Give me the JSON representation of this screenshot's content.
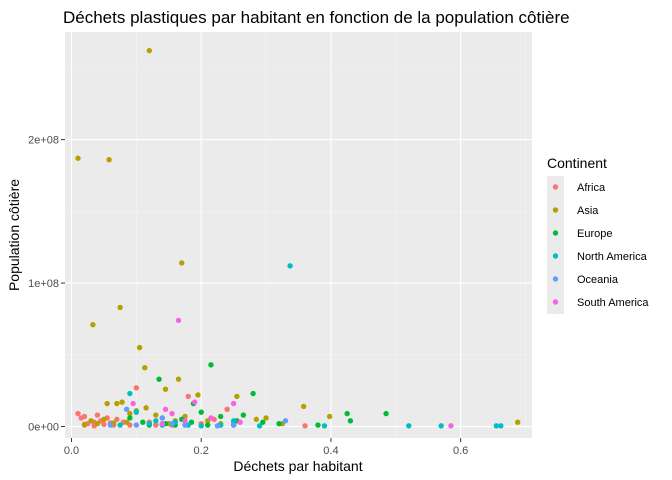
{
  "chart_data": {
    "type": "scatter",
    "title": "Déchets plastiques par habitant en fonction de la population côtière",
    "xlabel": "Déchets par habitant",
    "ylabel": "Population côtière",
    "xlim": [
      -0.01,
      0.71
    ],
    "ylim": [
      -8000000,
      275000000
    ],
    "x_ticks": [
      0.0,
      0.2,
      0.4,
      0.6
    ],
    "x_tick_labels": [
      "0.0",
      "0.2",
      "0.4",
      "0.6"
    ],
    "y_ticks": [
      0,
      100000000,
      200000000
    ],
    "y_tick_labels": [
      "0e+00",
      "1e+08",
      "2e+08"
    ],
    "grid": true,
    "legend": {
      "title": "Continent",
      "position": "right"
    },
    "series": [
      {
        "name": "Africa",
        "color": "#F8766D",
        "points": [
          [
            0.01,
            9000000
          ],
          [
            0.015,
            6000000
          ],
          [
            0.02,
            7000000
          ],
          [
            0.025,
            2000000
          ],
          [
            0.035,
            3000000
          ],
          [
            0.04,
            8000000
          ],
          [
            0.045,
            4000000
          ],
          [
            0.05,
            1500000
          ],
          [
            0.055,
            6000000
          ],
          [
            0.06,
            2500000
          ],
          [
            0.065,
            1000000
          ],
          [
            0.07,
            5000000
          ],
          [
            0.08,
            3000000
          ],
          [
            0.09,
            1000000
          ],
          [
            0.1,
            27000000
          ],
          [
            0.12,
            3000000
          ],
          [
            0.13,
            1000000
          ],
          [
            0.155,
            1000000
          ],
          [
            0.18,
            21000000
          ],
          [
            0.2,
            2000000
          ],
          [
            0.22,
            5000000
          ],
          [
            0.24,
            12000000
          ],
          [
            0.25,
            3000000
          ],
          [
            0.36,
            500000
          ],
          [
            0.02,
            1000000
          ],
          [
            0.035,
            500000
          ],
          [
            0.14,
            2000000
          ]
        ]
      },
      {
        "name": "Asia",
        "color": "#B79F00",
        "points": [
          [
            0.01,
            187000000
          ],
          [
            0.058,
            186000000
          ],
          [
            0.12,
            262000000
          ],
          [
            0.17,
            114000000
          ],
          [
            0.075,
            83000000
          ],
          [
            0.033,
            71000000
          ],
          [
            0.105,
            55000000
          ],
          [
            0.113,
            41000000
          ],
          [
            0.165,
            33000000
          ],
          [
            0.145,
            26000000
          ],
          [
            0.195,
            22000000
          ],
          [
            0.07,
            16000000
          ],
          [
            0.055,
            16000000
          ],
          [
            0.078,
            17000000
          ],
          [
            0.09,
            9000000
          ],
          [
            0.03,
            4000000
          ],
          [
            0.04,
            2000000
          ],
          [
            0.05,
            5000000
          ],
          [
            0.085,
            3000000
          ],
          [
            0.1,
            11000000
          ],
          [
            0.115,
            13000000
          ],
          [
            0.13,
            8000000
          ],
          [
            0.15,
            2000000
          ],
          [
            0.175,
            7000000
          ],
          [
            0.21,
            4000000
          ],
          [
            0.23,
            2000000
          ],
          [
            0.255,
            21000000
          ],
          [
            0.285,
            5000000
          ],
          [
            0.3,
            6000000
          ],
          [
            0.325,
            2000000
          ],
          [
            0.358,
            14000000
          ],
          [
            0.398,
            7000000
          ],
          [
            0.688,
            3000000
          ],
          [
            0.02,
            1500000
          ],
          [
            0.065,
            2500000
          ],
          [
            0.16,
            4000000
          ],
          [
            0.14,
            6000000
          ]
        ]
      },
      {
        "name": "Europe",
        "color": "#00BA38",
        "points": [
          [
            0.135,
            33000000
          ],
          [
            0.215,
            43000000
          ],
          [
            0.188,
            16000000
          ],
          [
            0.2,
            10000000
          ],
          [
            0.23,
            7000000
          ],
          [
            0.255,
            4000000
          ],
          [
            0.265,
            8000000
          ],
          [
            0.28,
            23000000
          ],
          [
            0.295,
            3000000
          ],
          [
            0.32,
            2000000
          ],
          [
            0.38,
            1000000
          ],
          [
            0.425,
            9000000
          ],
          [
            0.43,
            4000000
          ],
          [
            0.485,
            9000000
          ],
          [
            0.145,
            2000000
          ],
          [
            0.17,
            5000000
          ],
          [
            0.21,
            1000000
          ],
          [
            0.09,
            6000000
          ],
          [
            0.12,
            1000000
          ],
          [
            0.11,
            3000000
          ],
          [
            0.185,
            3000000
          ],
          [
            0.25,
            1000000
          ],
          [
            0.16,
            1000000
          ]
        ]
      },
      {
        "name": "North America",
        "color": "#00BFC4",
        "points": [
          [
            0.337,
            112000000
          ],
          [
            0.09,
            23000000
          ],
          [
            0.1,
            10000000
          ],
          [
            0.12,
            2000000
          ],
          [
            0.14,
            1000000
          ],
          [
            0.16,
            3000000
          ],
          [
            0.18,
            1000000
          ],
          [
            0.2,
            500000
          ],
          [
            0.23,
            1000000
          ],
          [
            0.25,
            4000000
          ],
          [
            0.29,
            500000
          ],
          [
            0.39,
            500000
          ],
          [
            0.52,
            500000
          ],
          [
            0.57,
            500000
          ],
          [
            0.655,
            500000
          ],
          [
            0.662,
            500000
          ],
          [
            0.13,
            4000000
          ],
          [
            0.075,
            1000000
          ]
        ]
      },
      {
        "name": "Oceania",
        "color": "#619CFF",
        "points": [
          [
            0.085,
            12000000
          ],
          [
            0.14,
            6000000
          ],
          [
            0.155,
            2000000
          ],
          [
            0.175,
            1000000
          ],
          [
            0.225,
            500000
          ],
          [
            0.33,
            4000000
          ],
          [
            0.1,
            1000000
          ],
          [
            0.06,
            1000000
          ],
          [
            0.25,
            1000000
          ]
        ]
      },
      {
        "name": "South America",
        "color": "#F564E3",
        "points": [
          [
            0.165,
            74000000
          ],
          [
            0.095,
            16000000
          ],
          [
            0.145,
            12000000
          ],
          [
            0.19,
            17000000
          ],
          [
            0.25,
            16000000
          ],
          [
            0.155,
            9000000
          ],
          [
            0.175,
            4000000
          ],
          [
            0.215,
            6000000
          ],
          [
            0.585,
            500000
          ],
          [
            0.26,
            3000000
          ],
          [
            0.14,
            2000000
          ]
        ]
      }
    ]
  }
}
